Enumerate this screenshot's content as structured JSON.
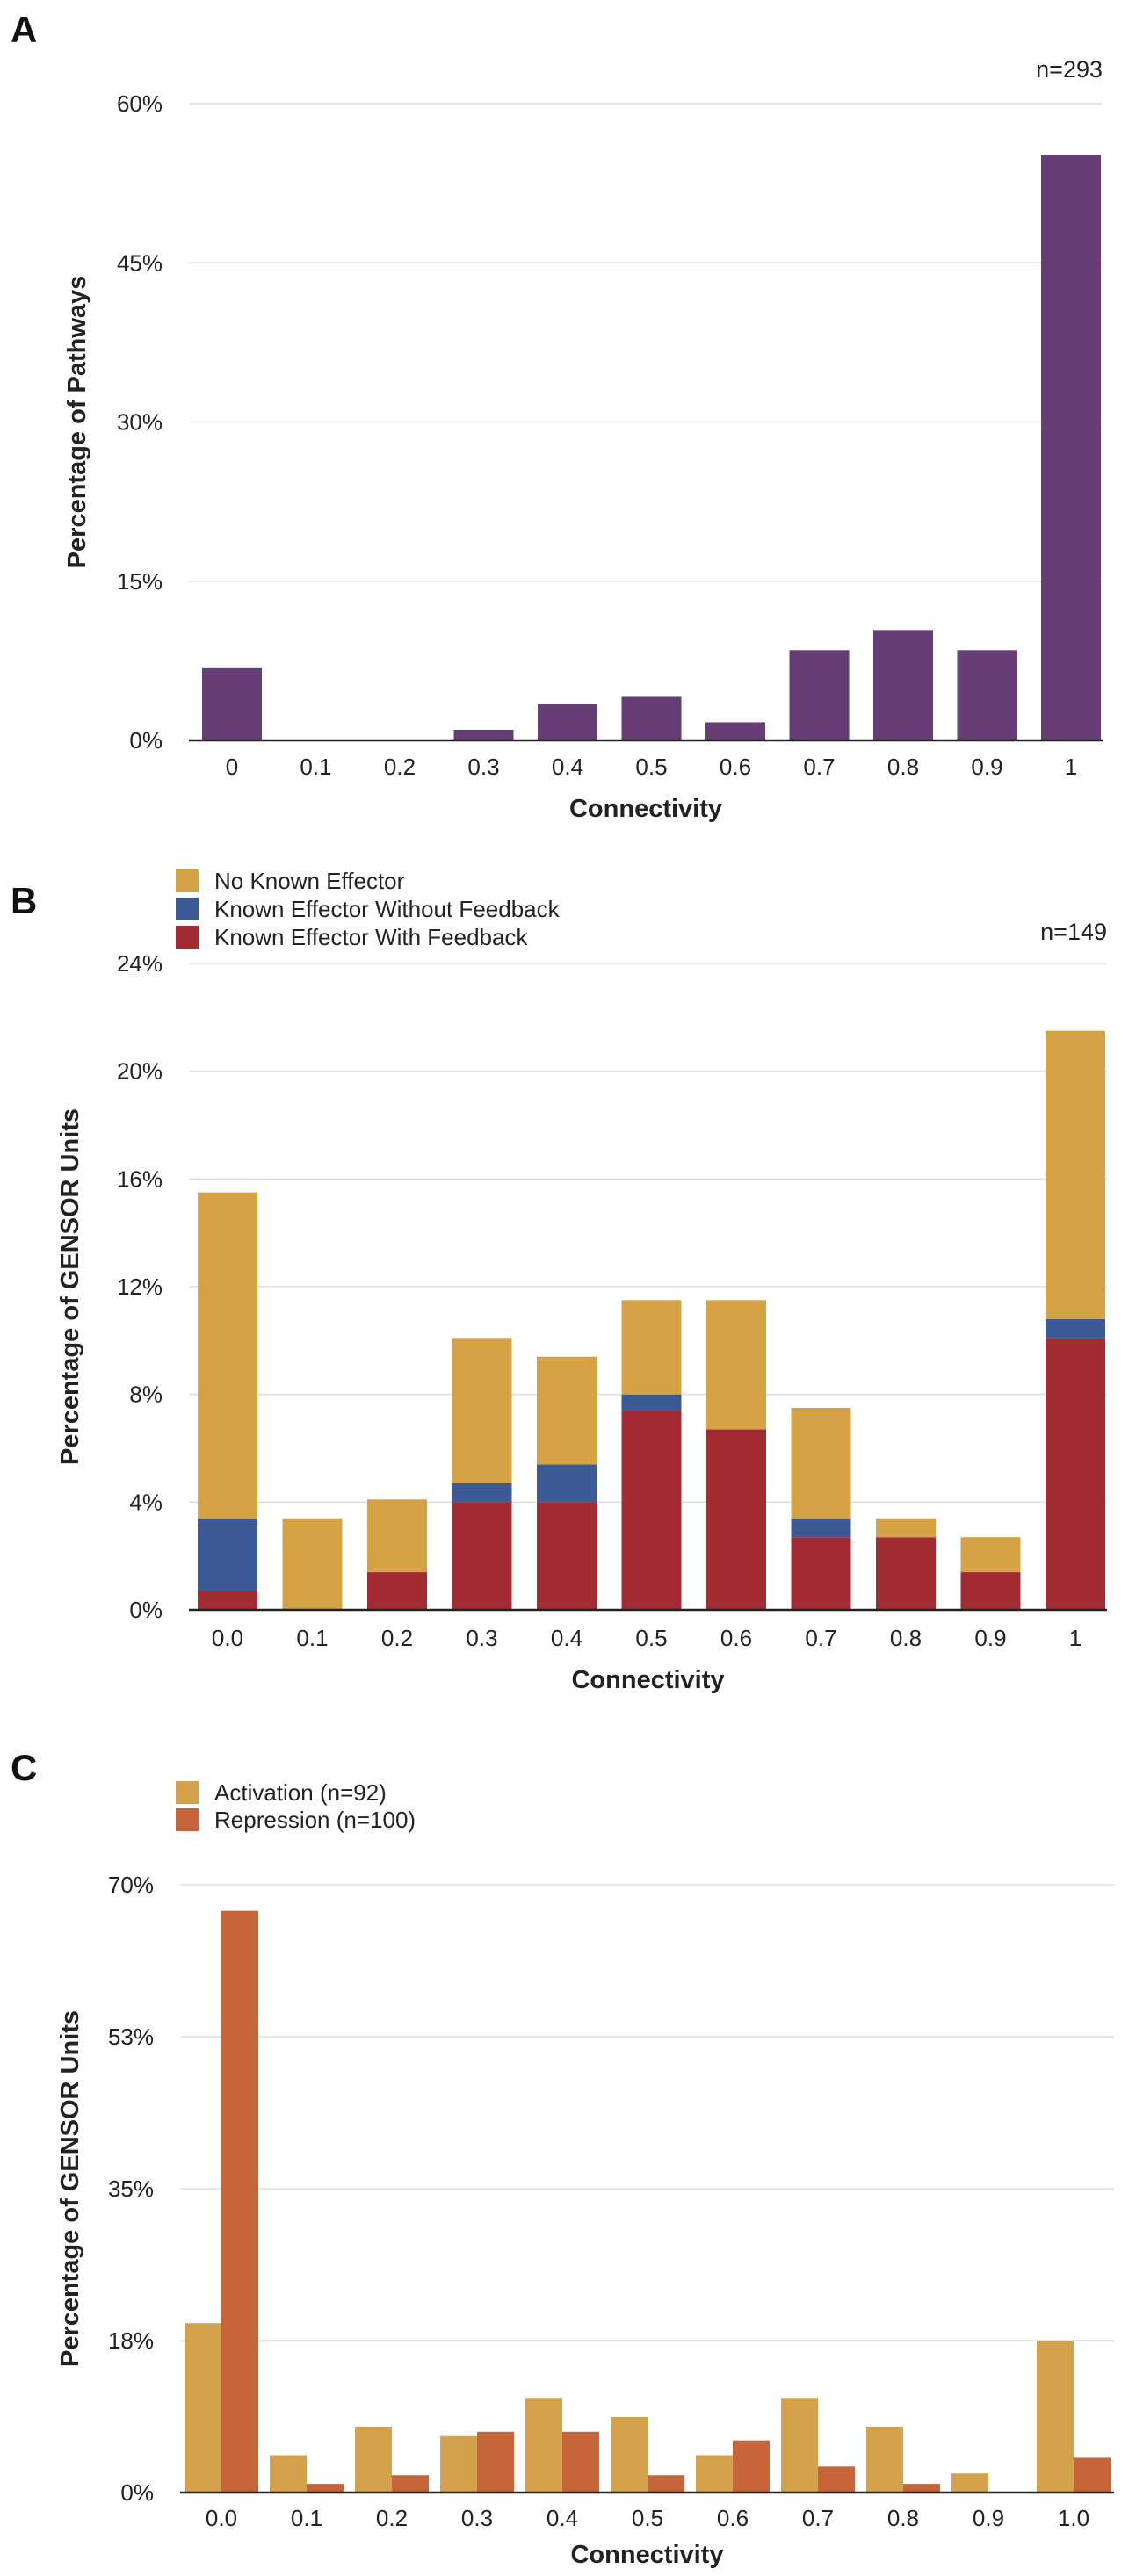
{
  "colors": {
    "purple": "#663d75",
    "no_effector": "#d5a245",
    "without_feedback": "#3b5a96",
    "with_feedback": "#a22b34",
    "activation": "#d4a24c",
    "repression": "#c7653a",
    "grid": "#dddddd",
    "axis": "#222222"
  },
  "chart_data": [
    {
      "panel_label": "A",
      "type": "bar",
      "annotation": "n=293",
      "categories": [
        "0",
        "0.1",
        "0.2",
        "0.3",
        "0.4",
        "0.5",
        "0.6",
        "0.7",
        "0.8",
        "0.9",
        "1"
      ],
      "series": [
        {
          "name": "Pathways",
          "color_key": "purple",
          "values": [
            6.8,
            0,
            0,
            1.0,
            3.4,
            4.1,
            1.7,
            8.5,
            10.4,
            8.5,
            55.2
          ]
        }
      ],
      "yticks": [
        0,
        15,
        30,
        45,
        60
      ],
      "ytick_labels": [
        "0%",
        "15%",
        "30%",
        "45%",
        "60%"
      ],
      "ylim": [
        0,
        60
      ],
      "xlabel": "Connectivity",
      "ylabel": "Percentage of Pathways",
      "grid": true,
      "legend": []
    },
    {
      "panel_label": "B",
      "type": "stacked_bar",
      "annotation": "n=149",
      "categories": [
        "0.0",
        "0.1",
        "0.2",
        "0.3",
        "0.4",
        "0.5",
        "0.6",
        "0.7",
        "0.8",
        "0.9",
        "1"
      ],
      "series": [
        {
          "name": "Known Effector With Feedback",
          "color_key": "with_feedback",
          "values": [
            0.7,
            0,
            1.4,
            4.0,
            4.0,
            7.4,
            6.7,
            2.7,
            2.7,
            1.4,
            10.1
          ]
        },
        {
          "name": "Known Effector Without Feedback",
          "color_key": "without_feedback",
          "values": [
            2.7,
            0,
            0,
            0.7,
            1.4,
            0.6,
            0,
            0.7,
            0,
            0,
            0.7
          ]
        },
        {
          "name": "No Known Effector",
          "color_key": "no_effector",
          "values": [
            12.1,
            3.4,
            2.7,
            5.4,
            4.0,
            3.5,
            4.8,
            4.1,
            0.7,
            1.3,
            10.7
          ]
        }
      ],
      "yticks": [
        0,
        4,
        8,
        12,
        16,
        20,
        24
      ],
      "ytick_labels": [
        "0%",
        "4%",
        "8%",
        "12%",
        "16%",
        "20%",
        "24%"
      ],
      "ylim": [
        0,
        24
      ],
      "xlabel": "Connectivity",
      "ylabel": "Percentage of GENSOR Units",
      "grid": true,
      "legend": [
        "No Known Effector",
        "Known Effector Without Feedback",
        "Known Effector With Feedback"
      ]
    },
    {
      "panel_label": "C",
      "type": "grouped_bar",
      "annotation": "",
      "categories": [
        "0.0",
        "0.1",
        "0.2",
        "0.3",
        "0.4",
        "0.5",
        "0.6",
        "0.7",
        "0.8",
        "0.9",
        "1.0"
      ],
      "series": [
        {
          "name": "Activation (n=92)",
          "color_key": "activation",
          "values": [
            19.5,
            4.3,
            7.6,
            6.5,
            10.9,
            8.7,
            4.3,
            10.9,
            7.6,
            2.2,
            17.4
          ]
        },
        {
          "name": "Repression (n=100)",
          "color_key": "repression",
          "values": [
            67.0,
            1.0,
            2.0,
            7.0,
            7.0,
            2.0,
            6.0,
            3.0,
            1.0,
            0,
            4.0
          ]
        }
      ],
      "yticks": [
        0,
        17.5,
        35,
        52.5,
        70
      ],
      "ytick_labels": [
        "0%",
        "18%",
        "35%",
        "53%",
        "70%"
      ],
      "ylim": [
        0,
        70
      ],
      "xlabel": "Connectivity",
      "ylabel": "Percentage of GENSOR Units",
      "grid": true,
      "legend": [
        "Activation (n=92)",
        "Repression (n=100)"
      ]
    }
  ]
}
